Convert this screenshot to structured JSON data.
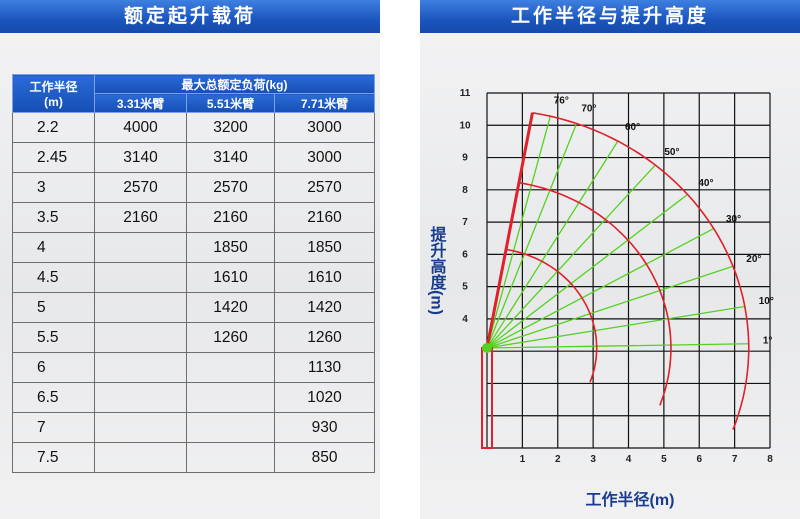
{
  "left": {
    "title": "额定起升载荷",
    "table": {
      "radius_header": [
        "工作半径",
        "(m)"
      ],
      "load_header": "最大总额定负荷(kg)",
      "boom_headers": [
        "3.31米臂",
        "5.51米臂",
        "7.71米臂"
      ],
      "rows": [
        [
          "2.2",
          "4000",
          "3200",
          "3000"
        ],
        [
          "2.45",
          "3140",
          "3140",
          "3000"
        ],
        [
          "3",
          "2570",
          "2570",
          "2570"
        ],
        [
          "3.5",
          "2160",
          "2160",
          "2160"
        ],
        [
          "4",
          "",
          "1850",
          "1850"
        ],
        [
          "4.5",
          "",
          "1610",
          "1610"
        ],
        [
          "5",
          "",
          "1420",
          "1420"
        ],
        [
          "5.5",
          "",
          "1260",
          "1260"
        ],
        [
          "6",
          "",
          "",
          "1130"
        ],
        [
          "6.5",
          "",
          "",
          "1020"
        ],
        [
          "7",
          "",
          "",
          "930"
        ],
        [
          "7.5",
          "",
          "",
          "850"
        ]
      ]
    }
  },
  "right": {
    "title": "工作半径与提升高度"
  },
  "chart_data": {
    "type": "line",
    "xlabel": "工作半径(m)",
    "ylabel": "提升高度(m)",
    "xlim": [
      0,
      8
    ],
    "ylim": [
      0,
      11
    ],
    "x_ticks": [
      "1",
      "2",
      "3",
      "4",
      "5",
      "6",
      "7",
      "8"
    ],
    "y_ticks": [
      "4",
      "5",
      "6",
      "7",
      "8",
      "9",
      "10",
      "11"
    ],
    "grid": true,
    "pivot": [
      0,
      3.1
    ],
    "boom_angles": [
      "1°",
      "10°",
      "20°",
      "30°",
      "40°",
      "50°",
      "60°",
      "70°",
      "76°"
    ],
    "angle_values": [
      1,
      10,
      20,
      30,
      40,
      50,
      60,
      70,
      76
    ],
    "reach_radii": [
      3.1,
      5.2,
      7.4
    ],
    "colors": {
      "arc": "#e0202a",
      "ray": "#55d21e",
      "grid": "#111111",
      "crane": "#e0202a"
    }
  }
}
